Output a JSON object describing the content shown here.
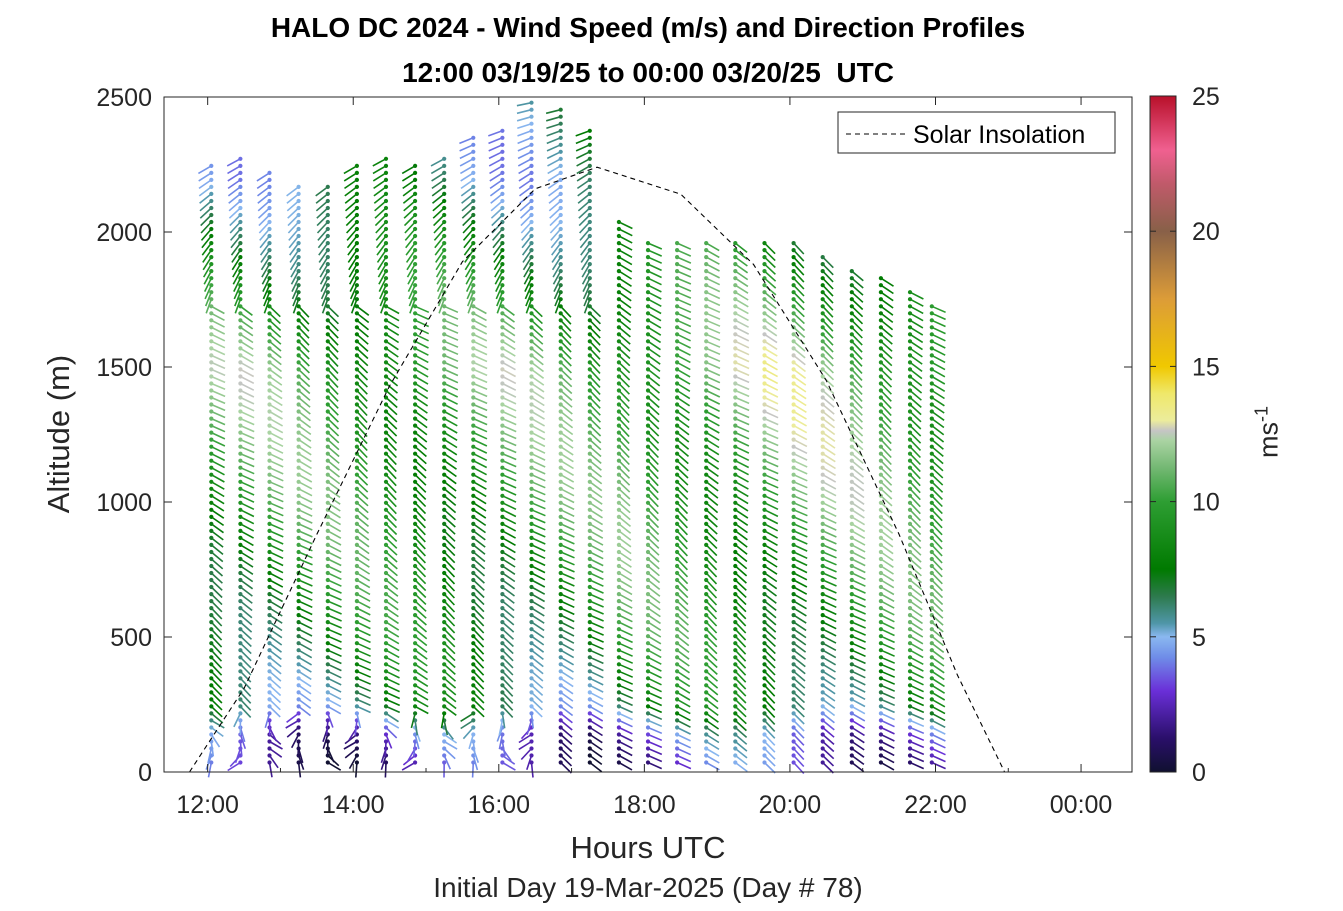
{
  "title": {
    "line1": "HALO DC 2024 - Wind Speed (m/s) and Direction Profiles",
    "line2": "12:00 03/19/25 to 00:00 03/20/25  UTC"
  },
  "axes": {
    "xlabel": "Hours UTC",
    "sub_xlabel": "Initial Day 19-Mar-2025 (Day # 78)",
    "ylabel": "Altitude (m)",
    "x_ticks": [
      "12:00",
      "14:00",
      "16:00",
      "18:00",
      "20:00",
      "22:00",
      "00:00"
    ],
    "y_ticks": [
      "0",
      "500",
      "1000",
      "1500",
      "2000",
      "2500"
    ]
  },
  "legend": {
    "label": "Solar Insolation",
    "position": "top-right"
  },
  "colorbar": {
    "label": "ms",
    "label_exponent": "-1",
    "ticks": [
      "0",
      "5",
      "10",
      "15",
      "20",
      "25"
    ],
    "range": [
      0,
      25
    ]
  },
  "chart_data": {
    "type": "scatter",
    "description_kind": "wind barb profile",
    "x_unit": "hours UTC",
    "y_unit": "m",
    "xlim": [
      11.4,
      24.7
    ],
    "ylim": [
      0,
      2500
    ],
    "grid": false,
    "profile_times": [
      12.05,
      12.45,
      12.85,
      13.25,
      13.65,
      14.05,
      14.45,
      14.85,
      15.25,
      15.65,
      16.05,
      16.45,
      16.85,
      17.25,
      17.65,
      18.05,
      18.45,
      18.85,
      19.25,
      19.65,
      20.05,
      20.45,
      20.85,
      21.25,
      21.65,
      21.95
    ],
    "profile_tops_m": [
      2270,
      2280,
      2220,
      2180,
      2190,
      2270,
      2290,
      2270,
      2280,
      2370,
      2400,
      2490,
      2460,
      2400,
      2060,
      1970,
      1960,
      1960,
      1960,
      1960,
      1960,
      1930,
      1880,
      1830,
      1780,
      1750
    ],
    "speed_profile": {
      "altitude_m": [
        0,
        150,
        250,
        500,
        1000,
        1500,
        1900,
        2200
      ],
      "speed_ms": [
        1.5,
        3.0,
        6.5,
        8.0,
        9.5,
        10.5,
        8.0,
        6.0
      ]
    },
    "solar_insolation": {
      "style": "dashed",
      "x": [
        11.75,
        12.5,
        13.5,
        14.5,
        15.5,
        16.5,
        17.35,
        18.5,
        19.5,
        20.5,
        21.5,
        22.3,
        22.95,
        24.7
      ],
      "y": [
        0,
        310,
        880,
        1430,
        1890,
        2160,
        2240,
        2140,
        1880,
        1450,
        880,
        360,
        0,
        0
      ]
    }
  }
}
